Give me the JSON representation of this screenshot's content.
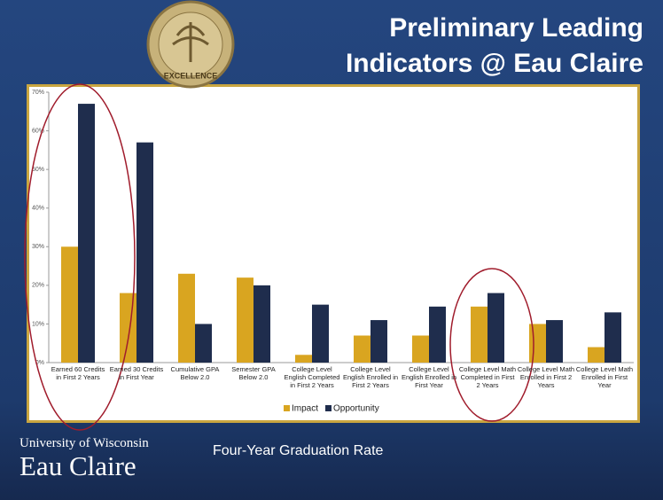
{
  "chart_data": {
    "type": "bar",
    "title": "Preliminary Leading Indicators @ Eau Claire",
    "categories": [
      "Earned 60 Credits in First 2 Years",
      "Earned 30 Credits in First Year",
      "Cumulative GPA Below 2.0",
      "Semester GPA Below 2.0",
      "College Level English Completed in First 2 Years",
      "College Level English Enrolled in First 2 Years",
      "College Level English Enrolled in First Year",
      "College Level Math Completed in First 2 Years",
      "College Level Math Enrolled in First 2 Years",
      "College Level Math Enrolled in First Year"
    ],
    "series": [
      {
        "name": "Impact",
        "color": "#d9a520",
        "values": [
          30,
          18,
          23,
          22,
          2,
          7,
          7,
          14.5,
          10,
          4
        ]
      },
      {
        "name": "Opportunity",
        "color": "#1f2d4d",
        "values": [
          67,
          57,
          10,
          20,
          15,
          11,
          14.5,
          18,
          11,
          13
        ]
      }
    ],
    "ylim": [
      0,
      70
    ],
    "yticks": [
      {
        "value": 0,
        "label": "0%"
      },
      {
        "value": 10,
        "label": "10%"
      },
      {
        "value": 20,
        "label": "20%"
      },
      {
        "value": 30,
        "label": "30%"
      },
      {
        "value": 40,
        "label": "40%"
      },
      {
        "value": 50,
        "label": "50%"
      },
      {
        "value": 60,
        "label": "60%"
      },
      {
        "value": 70,
        "label": "70%"
      }
    ],
    "legend": "bottom"
  },
  "caption": "Four-Year Graduation Rate",
  "logo": {
    "line1": "University of Wisconsin",
    "line2": "Eau Claire"
  },
  "seal_text": "EXCELLENCE"
}
